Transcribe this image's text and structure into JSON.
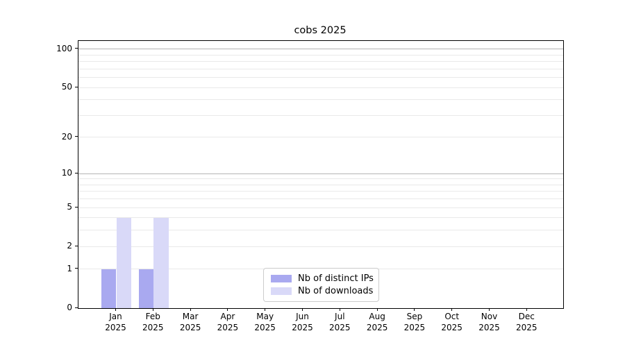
{
  "chart_data": {
    "type": "bar",
    "title": "cobs 2025",
    "categories": [
      "Jan 2025",
      "Feb 2025",
      "Mar 2025",
      "Apr 2025",
      "May 2025",
      "Jun 2025",
      "Jul 2025",
      "Aug 2025",
      "Sep 2025",
      "Oct 2025",
      "Nov 2025",
      "Dec 2025"
    ],
    "month_labels": [
      "Jan",
      "Feb",
      "Mar",
      "Apr",
      "May",
      "Jun",
      "Jul",
      "Aug",
      "Sep",
      "Oct",
      "Nov",
      "Dec"
    ],
    "year_label": "2025",
    "series": [
      {
        "name": "Nb of distinct IPs",
        "color": "#a9a9f0",
        "values": [
          1,
          1,
          0,
          0,
          0,
          0,
          0,
          0,
          0,
          0,
          0,
          0
        ]
      },
      {
        "name": "Nb of downloads",
        "color": "#d9d9f8",
        "values": [
          4,
          4,
          0,
          0,
          0,
          0,
          0,
          0,
          0,
          0,
          0,
          0
        ]
      }
    ],
    "y_axis": {
      "scale": "log1p",
      "ticks": [
        0,
        1,
        2,
        5,
        10,
        20,
        50,
        100
      ],
      "tick_labels": [
        "0",
        "1",
        "2",
        "5",
        "10",
        "20",
        "50",
        "100"
      ],
      "ylim": [
        0,
        116
      ]
    },
    "x_axis": {
      "label_lines": 2
    },
    "gridlines": {
      "major": [
        10,
        100
      ],
      "minor": [
        1,
        2,
        3,
        4,
        5,
        6,
        7,
        8,
        9,
        20,
        30,
        40,
        50,
        60,
        70,
        80,
        90
      ],
      "major_color": "#b3b3b3",
      "minor_color": "#e9e9e9"
    },
    "legend": {
      "position": "lower center",
      "border_color": "#cccccc",
      "background": "#ffffff"
    }
  }
}
